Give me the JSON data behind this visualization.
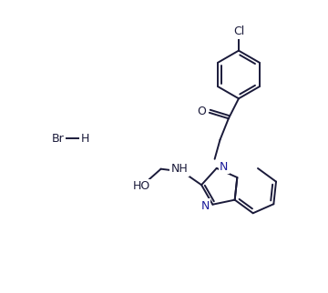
{
  "bg_color": "#ffffff",
  "bond_color": "#1a1a3a",
  "n_color": "#1a1a9a",
  "lw": 1.4,
  "lw2": 1.4,
  "fs": 9,
  "figsize": [
    3.6,
    3.22
  ],
  "dpi": 100,
  "xlim": [
    -1,
    11
  ],
  "ylim": [
    -1,
    10
  ]
}
